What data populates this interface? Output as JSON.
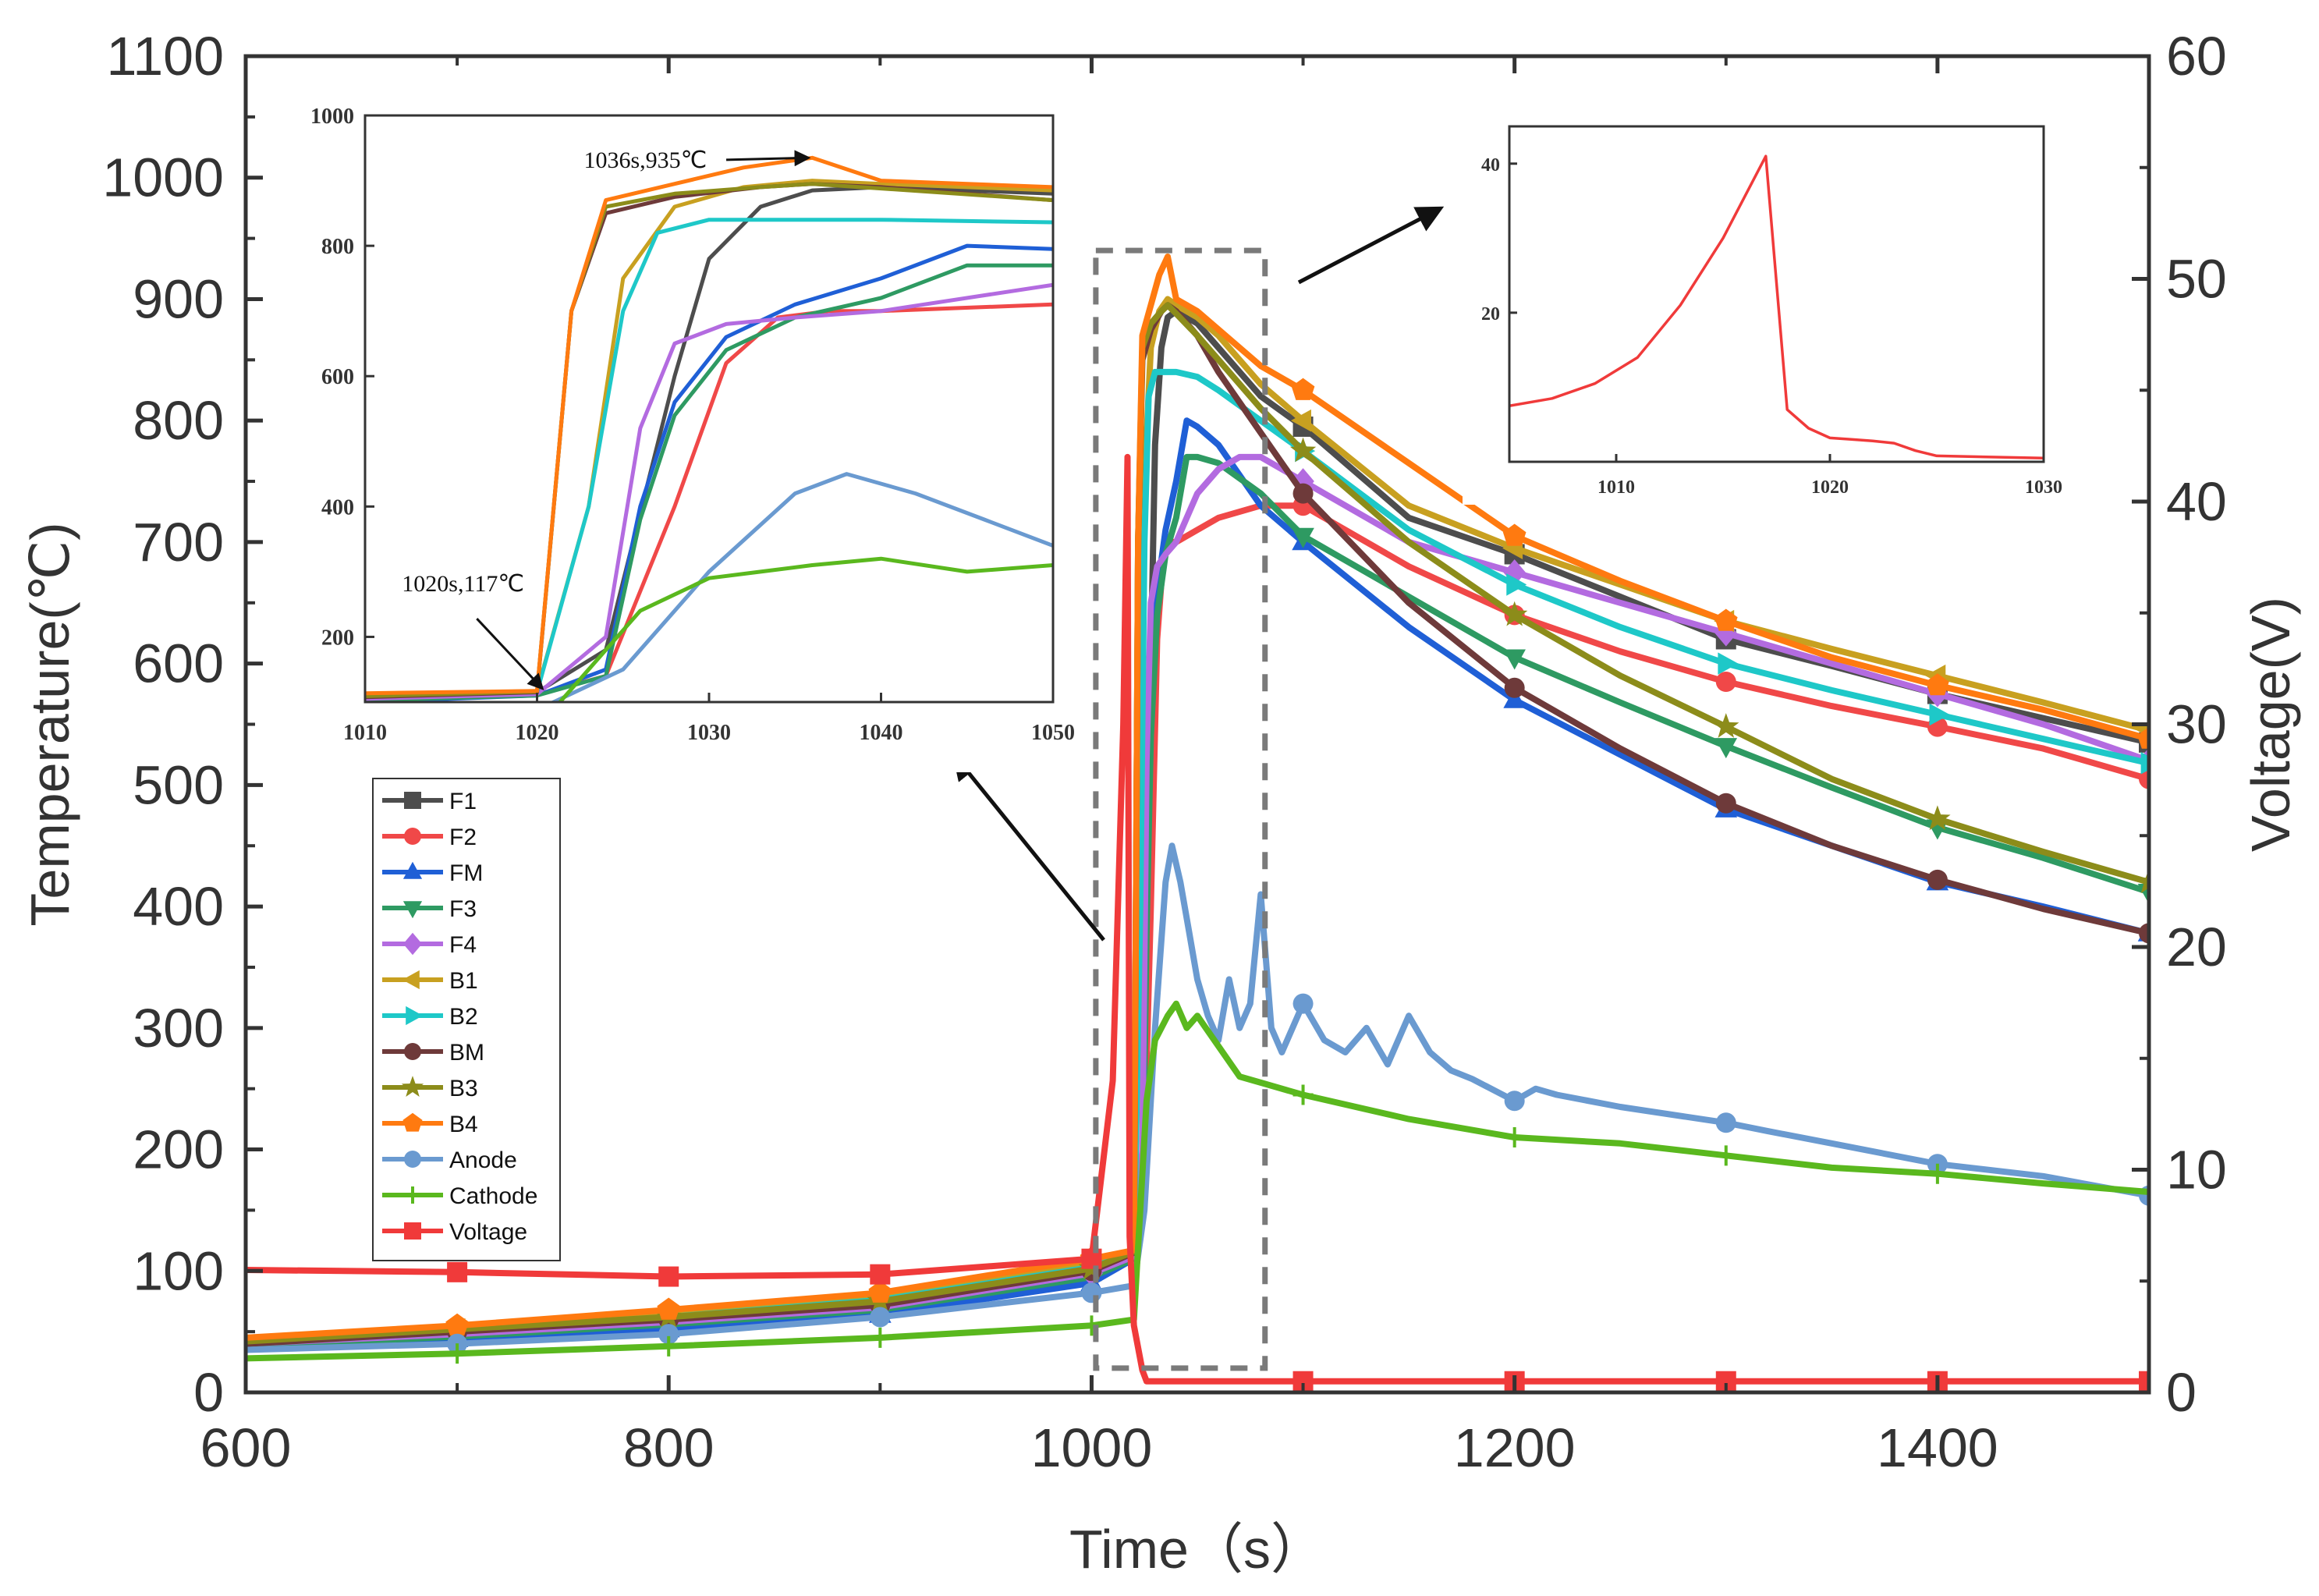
{
  "chart_data": {
    "type": "line",
    "main": {
      "xlabel": "Time（s）",
      "ylabel_left": "Temperature(℃)",
      "ylabel_right": "Voltage(V)",
      "xlim": [
        600,
        1500
      ],
      "ylim_left": [
        0,
        1100
      ],
      "ylim_right": [
        0,
        60
      ],
      "x_ticks": [
        "600",
        "800",
        "1000",
        "1200",
        "1400"
      ],
      "y_left_ticks": [
        "0",
        "100",
        "200",
        "300",
        "400",
        "500",
        "600",
        "700",
        "800",
        "900",
        "1000",
        "1100"
      ],
      "y_right_ticks": [
        "0",
        "10",
        "20",
        "30",
        "40",
        "50",
        "60"
      ],
      "highlight_box_x": [
        1002,
        1082
      ],
      "highlight_box_y": [
        20,
        940
      ]
    },
    "series": [
      {
        "name": "F1",
        "color": "#4d4d4d",
        "marker": "square",
        "axis": "left",
        "x": [
          600,
          700,
          800,
          900,
          1000,
          1020,
          1024,
          1028,
          1030,
          1033,
          1036,
          1040,
          1050,
          1060,
          1080,
          1100,
          1150,
          1200,
          1250,
          1300,
          1350,
          1400,
          1450,
          1500
        ],
        "y": [
          40,
          50,
          60,
          72,
          100,
          115,
          180,
          600,
          780,
          860,
          885,
          890,
          880,
          860,
          820,
          795,
          720,
          690,
          655,
          620,
          598,
          575,
          555,
          535
        ]
      },
      {
        "name": "F2",
        "color": "#f04848",
        "marker": "circle",
        "axis": "left",
        "x": [
          600,
          700,
          800,
          900,
          1000,
          1020,
          1024,
          1028,
          1031,
          1034,
          1037,
          1040,
          1050,
          1060,
          1080,
          1100,
          1150,
          1200,
          1250,
          1300,
          1350,
          1400,
          1450,
          1500
        ],
        "y": [
          42,
          52,
          62,
          74,
          102,
          112,
          140,
          400,
          620,
          690,
          700,
          700,
          710,
          720,
          730,
          730,
          680,
          640,
          610,
          585,
          565,
          548,
          530,
          505
        ]
      },
      {
        "name": "FM",
        "color": "#1f5fd6",
        "marker": "triangle",
        "axis": "left",
        "x": [
          600,
          700,
          800,
          900,
          1000,
          1020,
          1024,
          1026,
          1028,
          1031,
          1035,
          1040,
          1045,
          1050,
          1060,
          1080,
          1100,
          1150,
          1200,
          1250,
          1300,
          1350,
          1400,
          1450,
          1500
        ],
        "y": [
          36,
          44,
          52,
          64,
          90,
          110,
          150,
          400,
          560,
          660,
          710,
          750,
          800,
          795,
          780,
          730,
          700,
          630,
          570,
          525,
          480,
          450,
          420,
          400,
          378
        ]
      },
      {
        "name": "F3",
        "color": "#2e9a62",
        "marker": "triangle-down",
        "axis": "left",
        "x": [
          600,
          700,
          800,
          900,
          1000,
          1020,
          1024,
          1026,
          1028,
          1031,
          1035,
          1040,
          1045,
          1050,
          1060,
          1080,
          1100,
          1150,
          1200,
          1250,
          1300,
          1350,
          1400,
          1450,
          1500
        ],
        "y": [
          38,
          46,
          56,
          68,
          95,
          110,
          140,
          380,
          540,
          640,
          690,
          720,
          770,
          770,
          765,
          740,
          705,
          655,
          605,
          568,
          532,
          498,
          465,
          440,
          412
        ]
      },
      {
        "name": "F4",
        "color": "#b36be0",
        "marker": "diamond",
        "axis": "left",
        "x": [
          600,
          700,
          800,
          900,
          1000,
          1020,
          1024,
          1026,
          1028,
          1031,
          1035,
          1040,
          1050,
          1060,
          1070,
          1080,
          1100,
          1150,
          1200,
          1250,
          1300,
          1350,
          1400,
          1450,
          1500
        ],
        "y": [
          40,
          48,
          58,
          70,
          98,
          112,
          200,
          520,
          650,
          680,
          690,
          700,
          740,
          760,
          770,
          770,
          750,
          700,
          675,
          650,
          625,
          600,
          575,
          550,
          520
        ]
      },
      {
        "name": "B1",
        "color": "#c8a020",
        "marker": "triangle-left",
        "axis": "left",
        "x": [
          600,
          700,
          800,
          900,
          1000,
          1020,
          1023,
          1025,
          1028,
          1032,
          1036,
          1040,
          1050,
          1060,
          1080,
          1100,
          1150,
          1200,
          1250,
          1300,
          1350,
          1400,
          1450,
          1500
        ],
        "y": [
          42,
          52,
          64,
          78,
          105,
          117,
          400,
          750,
          860,
          890,
          900,
          895,
          885,
          870,
          830,
          800,
          730,
          695,
          665,
          635,
          612,
          590,
          568,
          545
        ]
      },
      {
        "name": "B2",
        "color": "#1ec8c8",
        "marker": "triangle-right",
        "axis": "left",
        "x": [
          600,
          700,
          800,
          900,
          1000,
          1020,
          1023,
          1025,
          1027,
          1030,
          1035,
          1040,
          1045,
          1050,
          1060,
          1080,
          1100,
          1150,
          1200,
          1250,
          1300,
          1350,
          1400,
          1450,
          1500
        ],
        "y": [
          40,
          50,
          62,
          76,
          103,
          115,
          400,
          700,
          820,
          840,
          840,
          840,
          838,
          836,
          825,
          800,
          775,
          710,
          665,
          630,
          600,
          578,
          558,
          538,
          518
        ]
      },
      {
        "name": "BM",
        "color": "#6e3a3a",
        "marker": "circle",
        "axis": "left",
        "x": [
          600,
          700,
          800,
          900,
          1000,
          1020,
          1022,
          1024,
          1028,
          1033,
          1036,
          1040,
          1050,
          1060,
          1080,
          1100,
          1150,
          1200,
          1250,
          1300,
          1350,
          1400,
          1450,
          1500
        ],
        "y": [
          40,
          50,
          60,
          72,
          100,
          115,
          700,
          850,
          875,
          890,
          895,
          890,
          870,
          840,
          790,
          740,
          650,
          580,
          530,
          485,
          450,
          422,
          398,
          378
        ]
      },
      {
        "name": "B3",
        "color": "#8c8c1a",
        "marker": "star",
        "axis": "left",
        "x": [
          600,
          700,
          800,
          900,
          1000,
          1020,
          1022,
          1024,
          1028,
          1033,
          1036,
          1040,
          1050,
          1060,
          1080,
          1100,
          1150,
          1200,
          1250,
          1300,
          1350,
          1400,
          1450,
          1500
        ],
        "y": [
          42,
          52,
          62,
          75,
          102,
          116,
          700,
          860,
          880,
          890,
          895,
          888,
          870,
          850,
          810,
          775,
          700,
          640,
          590,
          548,
          505,
          472,
          445,
          420
        ]
      },
      {
        "name": "B4",
        "color": "#ff7a10",
        "marker": "pentagon",
        "axis": "left",
        "x": [
          600,
          700,
          800,
          900,
          1000,
          1020,
          1022,
          1024,
          1028,
          1032,
          1036,
          1040,
          1050,
          1060,
          1080,
          1100,
          1150,
          1200,
          1250,
          1300,
          1350,
          1400,
          1450,
          1500
        ],
        "y": [
          45,
          55,
          68,
          82,
          110,
          117,
          700,
          870,
          895,
          920,
          935,
          900,
          890,
          875,
          845,
          825,
          765,
          705,
          668,
          635,
          605,
          582,
          562,
          538
        ]
      },
      {
        "name": "Anode",
        "color": "#6a9ad0",
        "marker": "circle",
        "axis": "left",
        "x": [
          600,
          700,
          800,
          900,
          1000,
          1020,
          1025,
          1030,
          1035,
          1038,
          1042,
          1046,
          1050,
          1055,
          1060,
          1065,
          1070,
          1075,
          1080,
          1085,
          1090,
          1100,
          1110,
          1120,
          1130,
          1140,
          1150,
          1160,
          1170,
          1180,
          1200,
          1210,
          1220,
          1250,
          1300,
          1320,
          1350,
          1400,
          1450,
          1500
        ],
        "y": [
          35,
          40,
          48,
          62,
          82,
          88,
          150,
          300,
          420,
          450,
          420,
          380,
          340,
          310,
          290,
          340,
          300,
          320,
          410,
          300,
          280,
          320,
          290,
          280,
          300,
          270,
          310,
          280,
          265,
          258,
          240,
          250,
          245,
          235,
          222,
          215,
          205,
          188,
          178,
          162
        ]
      },
      {
        "name": "Cathode",
        "color": "#5ab81e",
        "marker": "plus",
        "axis": "left",
        "x": [
          600,
          700,
          800,
          900,
          1000,
          1020,
          1023,
          1026,
          1030,
          1033,
          1036,
          1040,
          1045,
          1050,
          1060,
          1070,
          1080,
          1100,
          1150,
          1200,
          1250,
          1300,
          1350,
          1400,
          1450,
          1500
        ],
        "y": [
          28,
          32,
          38,
          45,
          55,
          60,
          150,
          240,
          290,
          300,
          310,
          320,
          300,
          310,
          285,
          260,
          255,
          245,
          225,
          210,
          205,
          195,
          185,
          180,
          172,
          165
        ]
      },
      {
        "name": "Voltage",
        "color": "#f03a3a",
        "marker": "square",
        "axis": "right",
        "x": [
          600,
          700,
          800,
          900,
          1000,
          1010,
          1015,
          1017,
          1018,
          1020,
          1022,
          1024,
          1026,
          1100,
          1200,
          1300,
          1400,
          1500
        ],
        "y": [
          5.5,
          5.4,
          5.2,
          5.3,
          6.0,
          14,
          30,
          42,
          7,
          3,
          2,
          1,
          0.5,
          0.5,
          0.5,
          0.5,
          0.5,
          0.5
        ]
      }
    ],
    "inset_temperature": {
      "xlim": [
        1010,
        1050
      ],
      "ylim": [
        100,
        1000
      ],
      "x_ticks": [
        "1010",
        "1020",
        "1030",
        "1040",
        "1050"
      ],
      "y_ticks": [
        "200",
        "400",
        "600",
        "800",
        "1000"
      ],
      "annotations": [
        {
          "text": "1036s,935℃",
          "x": 1036,
          "y": 935
        },
        {
          "text": "1020s,117℃",
          "x": 1020,
          "y": 117
        }
      ]
    },
    "inset_voltage": {
      "xlim": [
        1005,
        1030
      ],
      "ylim": [
        0,
        45
      ],
      "x_ticks": [
        "1010",
        "1020",
        "1030"
      ],
      "y_ticks": [
        "20",
        "40"
      ],
      "color": "#f03a3a",
      "x": [
        1005,
        1007,
        1009,
        1011,
        1013,
        1015,
        1017,
        1018,
        1019,
        1020,
        1021,
        1022,
        1023,
        1024,
        1025,
        1030
      ],
      "y": [
        7.5,
        8.5,
        10.5,
        14,
        21,
        30,
        41,
        7,
        4.5,
        3.2,
        3,
        2.8,
        2.5,
        1.5,
        0.8,
        0.5
      ]
    },
    "legend": {
      "position": "left-middle"
    }
  }
}
